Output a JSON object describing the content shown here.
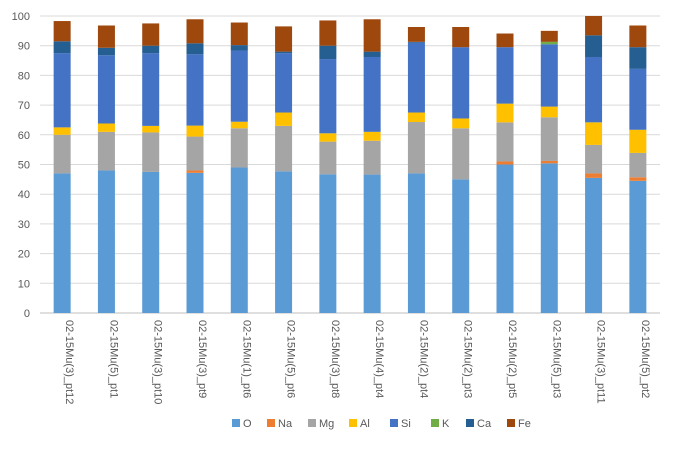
{
  "chart_data": {
    "type": "bar",
    "stacked": true,
    "title": "",
    "xlabel": "",
    "ylabel": "",
    "ylim": [
      0,
      100
    ],
    "yticks": [
      0,
      10,
      20,
      30,
      40,
      50,
      60,
      70,
      80,
      90,
      100
    ],
    "grid": true,
    "legend_position": "bottom",
    "categories": [
      "02-15Mu(3)_pt12",
      "02-15Mu(5)_pt1",
      "02-15Mu(3)_pt10",
      "02-15Mu(3)_pt9",
      "02-15Mu(1)_pt6",
      "02-15Mu(5)_pt6",
      "02-15Mu(3)_pt8",
      "02-15Mu(4)_pt4",
      "02-15Mu(2)_pt4",
      "02-15Mu(2)_pt3",
      "02-15Mu(2)_pt5",
      "02-15Mu(5)_pt3",
      "02-15Mu(3)_pt11",
      "02-15Mu(5)_pt2"
    ],
    "series": [
      {
        "name": "O",
        "color": "#5b9bd5",
        "values": [
          47.0,
          48.0,
          47.5,
          47.2,
          49.0,
          47.7,
          46.7,
          46.6,
          47.0,
          45.0,
          50.0,
          50.4,
          45.5,
          44.5
        ]
      },
      {
        "name": "Na",
        "color": "#ed7d31",
        "values": [
          0,
          0,
          0,
          0.8,
          0,
          0,
          0,
          0,
          0,
          0,
          1.0,
          0.8,
          1.5,
          1.2
        ]
      },
      {
        "name": "Mg",
        "color": "#a5a5a5",
        "values": [
          13.0,
          13.0,
          13.3,
          11.4,
          13.2,
          15.3,
          11.0,
          11.4,
          17.3,
          17.2,
          13.2,
          14.7,
          9.6,
          8.2
        ]
      },
      {
        "name": "Al",
        "color": "#ffc000",
        "values": [
          2.5,
          2.8,
          2.2,
          3.7,
          2.2,
          4.5,
          2.8,
          3.0,
          3.2,
          3.3,
          6.3,
          3.6,
          7.6,
          7.8
        ]
      },
      {
        "name": "Si",
        "color": "#4472c4",
        "values": [
          25.0,
          23.0,
          24.5,
          24.0,
          24.0,
          20.0,
          25.0,
          25.2,
          23.5,
          24.0,
          19.0,
          21.0,
          22.0,
          20.5
        ]
      },
      {
        "name": "K",
        "color": "#70ad47",
        "values": [
          0,
          0,
          0,
          0,
          0,
          0,
          0,
          0,
          0,
          0,
          0,
          0.8,
          0,
          0
        ]
      },
      {
        "name": "Ca",
        "color": "#255e91",
        "values": [
          4.0,
          2.5,
          2.5,
          3.7,
          1.8,
          0.5,
          4.5,
          1.8,
          0.3,
          0,
          0,
          0,
          7.3,
          7.3
        ]
      },
      {
        "name": "Fe",
        "color": "#9e480e",
        "values": [
          6.8,
          7.5,
          7.5,
          8.1,
          7.6,
          8.5,
          8.5,
          10.9,
          5.0,
          6.8,
          4.6,
          3.7,
          6.5,
          7.3
        ]
      }
    ]
  }
}
